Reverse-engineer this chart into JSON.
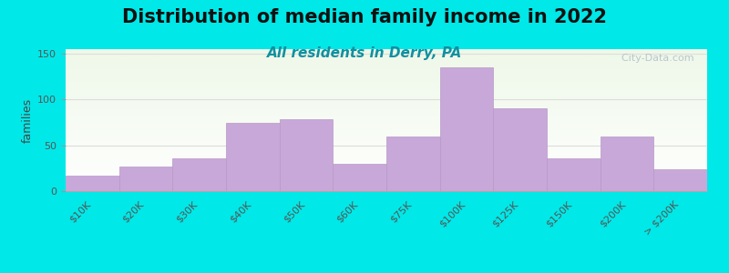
{
  "title": "Distribution of median family income in 2022",
  "subtitle": "All residents in Derry, PA",
  "ylabel": "families",
  "categories": [
    "$10K",
    "$20K",
    "$30K",
    "$40K",
    "$50K",
    "$60K",
    "$75K",
    "$100K",
    "$125K",
    "$150K",
    "$200K",
    "> $200K"
  ],
  "values": [
    17,
    27,
    36,
    75,
    78,
    30,
    60,
    135,
    90,
    36,
    60,
    24
  ],
  "bar_color": "#c8a8d8",
  "bar_edge_color": "#b898c8",
  "ylim": [
    0,
    155
  ],
  "yticks": [
    0,
    50,
    100,
    150
  ],
  "background_color": "#00e8e8",
  "plot_bg_gradient_top": "#eef8e8",
  "plot_bg_gradient_bottom": "#ffffff",
  "title_fontsize": 15,
  "title_color": "#111111",
  "subtitle_fontsize": 11,
  "subtitle_color": "#1090a0",
  "watermark_text": "  City-Data.com",
  "grid_color": "#dddddd",
  "tick_label_color": "#555555",
  "ylabel_color": "#444444"
}
